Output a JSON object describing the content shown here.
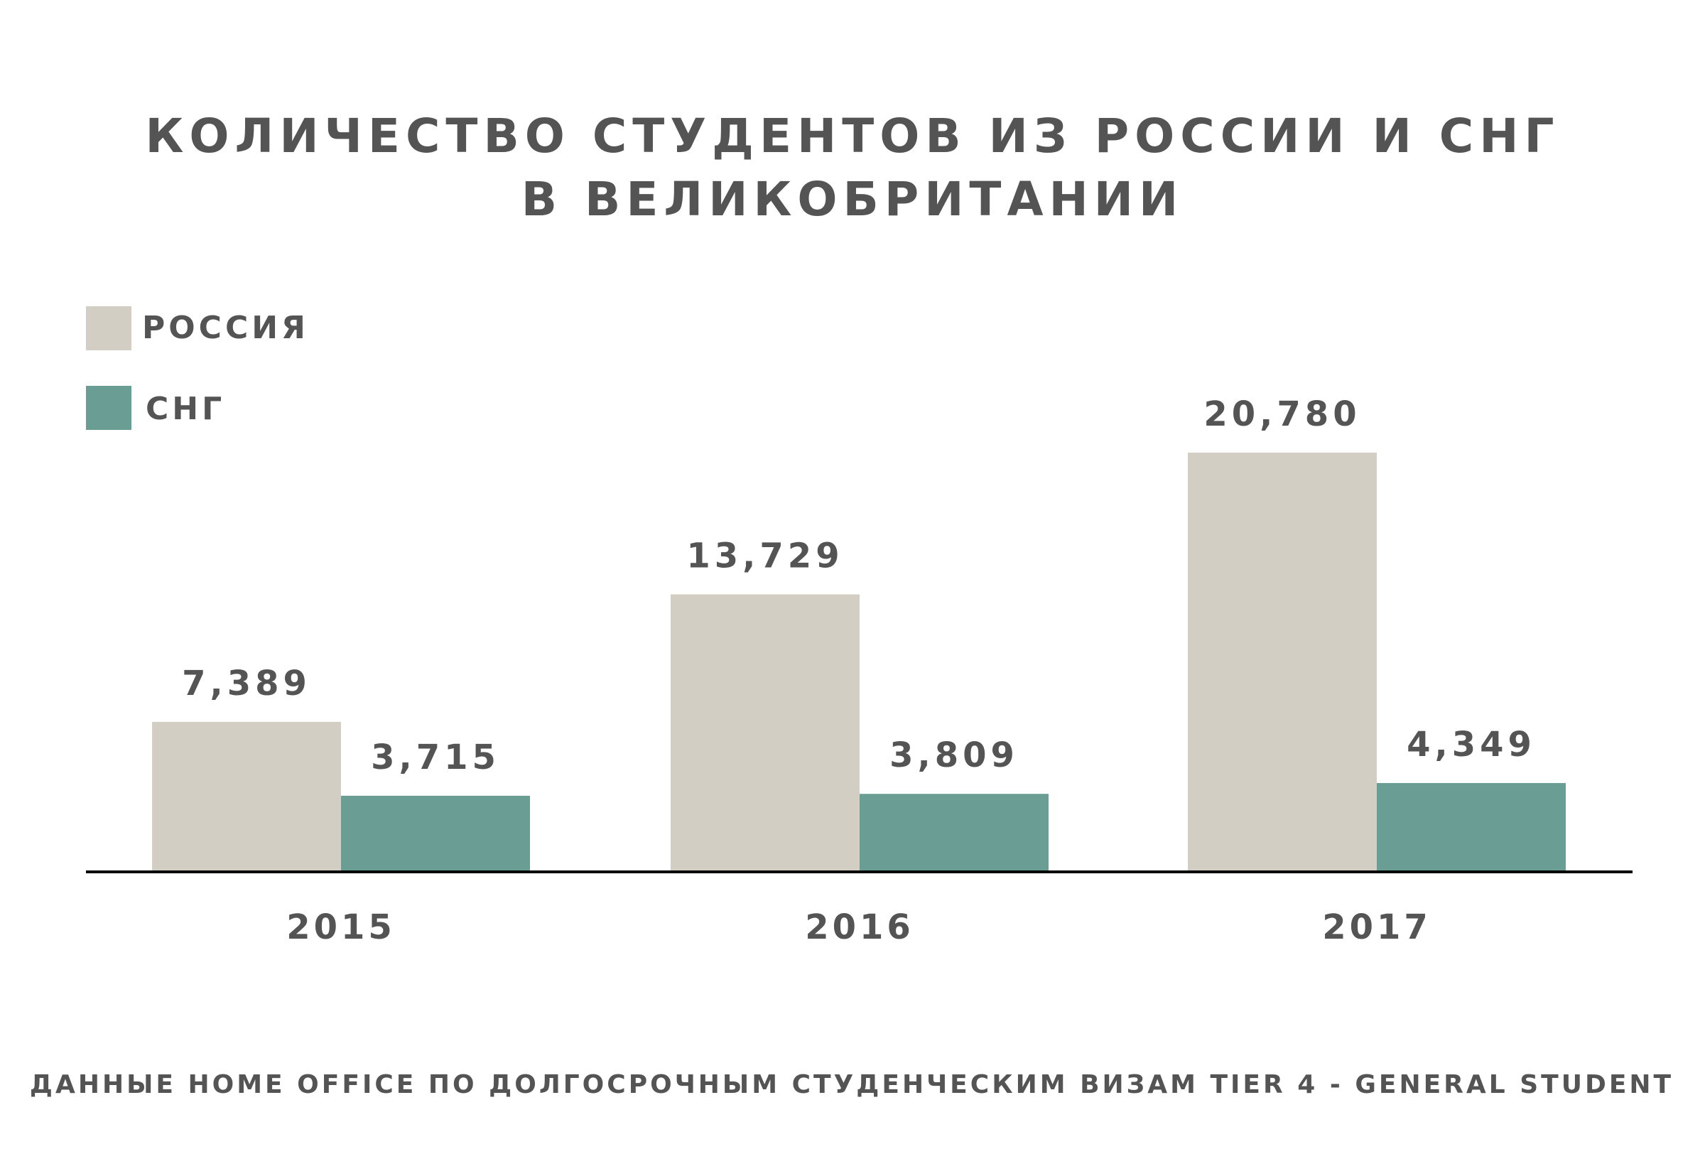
{
  "title": {
    "line1": "КОЛИЧЕСТВО СТУДЕНТОВ ИЗ РОССИИ И СНГ",
    "line2": "В ВЕЛИКОБРИТАНИИ"
  },
  "legend": {
    "items": [
      {
        "label": "РОССИЯ",
        "color": "#d2cec3"
      },
      {
        "label": "СНГ",
        "color": "#6a9e95"
      }
    ]
  },
  "source": "ДАННЫЕ HOME OFFICE ПО ДОЛГОСРОЧНЫМ СТУДЕНЧЕСКИМ ВИЗАМ TIER 4 - GENERAL STUDENT",
  "chart_data": {
    "type": "bar",
    "title": "КОЛИЧЕСТВО СТУДЕНТОВ ИЗ РОССИИ И СНГ В ВЕЛИКОБРИТАНИИ",
    "categories": [
      "2015",
      "2016",
      "2017"
    ],
    "series": [
      {
        "name": "РОССИЯ",
        "values": [
          7389,
          13729,
          20780
        ],
        "labels": [
          "7,389",
          "13,729",
          "20,780"
        ],
        "color": "#d2cec3"
      },
      {
        "name": "СНГ",
        "values": [
          3715,
          3809,
          4349
        ],
        "labels": [
          "3,715",
          "3,809",
          "4,349"
        ],
        "color": "#6a9e95"
      }
    ],
    "xlabel": "",
    "ylabel": "",
    "ylim": [
      0,
      20780
    ],
    "grid": false,
    "legend_position": "top-left",
    "axis_color": "#000000"
  }
}
